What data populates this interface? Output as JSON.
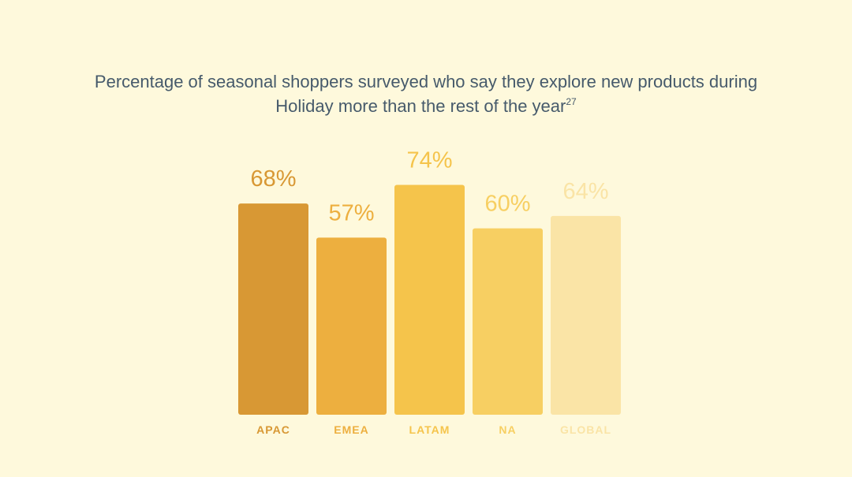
{
  "chart_data": {
    "type": "bar",
    "title": "Percentage of seasonal shoppers surveyed who say they explore new products during Holiday more than the rest of the year",
    "title_footnote": "27",
    "categories": [
      "APAC",
      "EMEA",
      "LATAM",
      "NA",
      "GLOBAL"
    ],
    "values": [
      68,
      57,
      74,
      60,
      64
    ],
    "value_labels": [
      "68%",
      "57%",
      "74%",
      "60%",
      "64%"
    ],
    "colors": [
      "#d89834",
      "#edaf3f",
      "#f5c44b",
      "#f7cf62",
      "#fae4a6"
    ],
    "label_colors": [
      "#d89834",
      "#edaf3f",
      "#f5c44b",
      "#f7cf62",
      "#fae4a6"
    ],
    "ylim": [
      0,
      100
    ],
    "grid": false,
    "legend": "none",
    "xlabel": "",
    "ylabel": ""
  }
}
